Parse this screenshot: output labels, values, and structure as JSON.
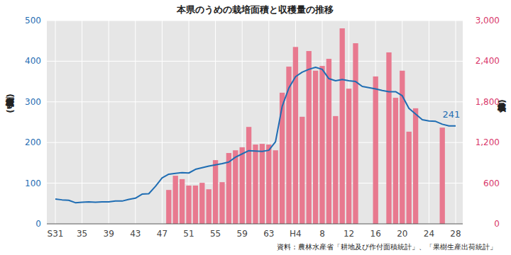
{
  "chart_data": {
    "type": "bar",
    "title": "本県のうめの栽培面積と収穫量の推移",
    "y_label": "栽培面積 (ha)",
    "y2_label": "収穫量 (t)",
    "source": "資料：農林水産省「耕地及び作付面積統計」、「果樹生産出荷統計」",
    "categories": [
      "S31",
      null,
      null,
      null,
      "35",
      null,
      null,
      null,
      "39",
      null,
      null,
      null,
      "43",
      null,
      null,
      null,
      "47",
      null,
      null,
      null,
      "51",
      null,
      null,
      null,
      "55",
      null,
      null,
      null,
      "59",
      null,
      null,
      null,
      "63",
      null,
      null,
      null,
      "H4",
      null,
      null,
      null,
      "8",
      null,
      null,
      null,
      "12",
      null,
      null,
      null,
      "16",
      null,
      null,
      null,
      "20",
      null,
      null,
      null,
      "24",
      null,
      null,
      null,
      "28"
    ],
    "ylim": [
      0,
      500
    ],
    "yticks": [
      0,
      100,
      200,
      300,
      400,
      500
    ],
    "y2lim": [
      0,
      3000
    ],
    "y2ticks": [
      0,
      600,
      {
        "value": 1200,
        "label": "1,200"
      },
      {
        "value": 1800,
        "label": "1,800"
      },
      {
        "value": 2400,
        "label": "2,400"
      },
      {
        "value": 3000,
        "label": "3,000"
      }
    ],
    "grid": true,
    "series": [
      {
        "type": "bar",
        "axis": "y2",
        "color": "#e8798f",
        "values": [
          null,
          null,
          null,
          null,
          null,
          null,
          null,
          null,
          null,
          null,
          null,
          null,
          null,
          null,
          null,
          null,
          null,
          500,
          710,
          660,
          565,
          565,
          605,
          510,
          940,
          615,
          1045,
          1085,
          1130,
          1430,
          1170,
          1180,
          1170,
          1085,
          1935,
          2320,
          2610,
          1580,
          2550,
          2260,
          2330,
          2435,
          1590,
          2885,
          1995,
          2665,
          null,
          null,
          2175,
          null,
          2530,
          1860,
          2260,
          1360,
          1705,
          null,
          null,
          null,
          1420,
          null,
          null
        ]
      },
      {
        "type": "line",
        "color": "#1f6db3",
        "values": [
          61,
          59,
          58,
          52,
          53,
          54,
          53,
          54,
          54,
          56,
          56,
          60,
          63,
          73,
          74,
          92,
          113,
          122,
          124,
          126,
          125,
          134,
          138,
          142,
          145,
          148,
          152,
          164,
          172,
          180,
          179,
          178,
          181,
          202,
          289,
          334,
          362,
          373,
          380,
          385,
          380,
          357,
          352,
          355,
          352,
          350,
          338,
          335,
          332,
          328,
          325,
          325,
          315,
          284,
          270,
          256,
          253,
          252,
          245,
          241,
          241
        ]
      }
    ],
    "annotations": [
      {
        "text": "241",
        "series": 1,
        "index": 60
      }
    ]
  }
}
